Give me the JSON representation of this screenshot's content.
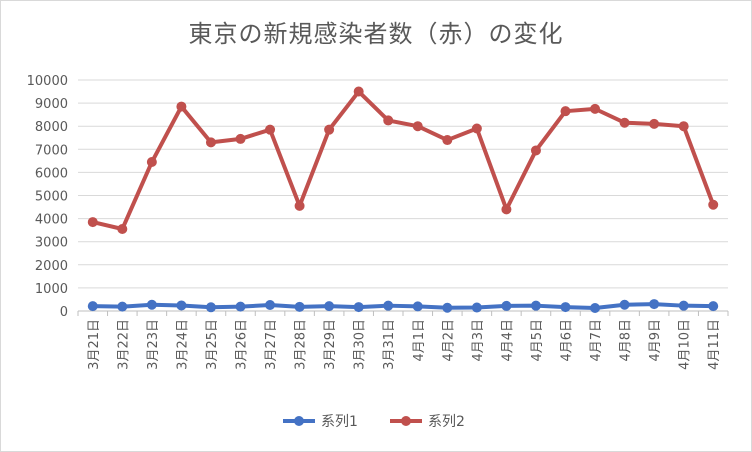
{
  "chart_data": {
    "type": "line",
    "title": "東京の新規感染者数（赤）の変化",
    "categories": [
      "3月21日",
      "3月22日",
      "3月23日",
      "3月24日",
      "3月25日",
      "3月26日",
      "3月27日",
      "3月28日",
      "3月29日",
      "3月30日",
      "3月31日",
      "4月1日",
      "4月2日",
      "4月3日",
      "4月4日",
      "4月5日",
      "4月6日",
      "4月7日",
      "4月8日",
      "4月9日",
      "4月10日",
      "4月11日"
    ],
    "series": [
      {
        "name": "系列1",
        "color": "#4472c4",
        "values": [
          210,
          190,
          270,
          240,
          160,
          190,
          260,
          180,
          210,
          170,
          230,
          200,
          140,
          150,
          220,
          230,
          170,
          130,
          270,
          300,
          230,
          210
        ]
      },
      {
        "name": "系列2",
        "color": "#c0504d",
        "values": [
          3850,
          3550,
          6450,
          8850,
          7300,
          7450,
          7850,
          4550,
          7850,
          9500,
          8250,
          8000,
          7400,
          7900,
          4400,
          6950,
          8650,
          8750,
          8150,
          8100,
          8000,
          4600
        ]
      }
    ],
    "ylim": [
      0,
      10000
    ],
    "yticks": [
      "0",
      "1000",
      "2000",
      "3000",
      "4000",
      "5000",
      "6000",
      "7000",
      "8000",
      "9000",
      "10000"
    ],
    "grid": true,
    "legend_position": "bottom"
  }
}
